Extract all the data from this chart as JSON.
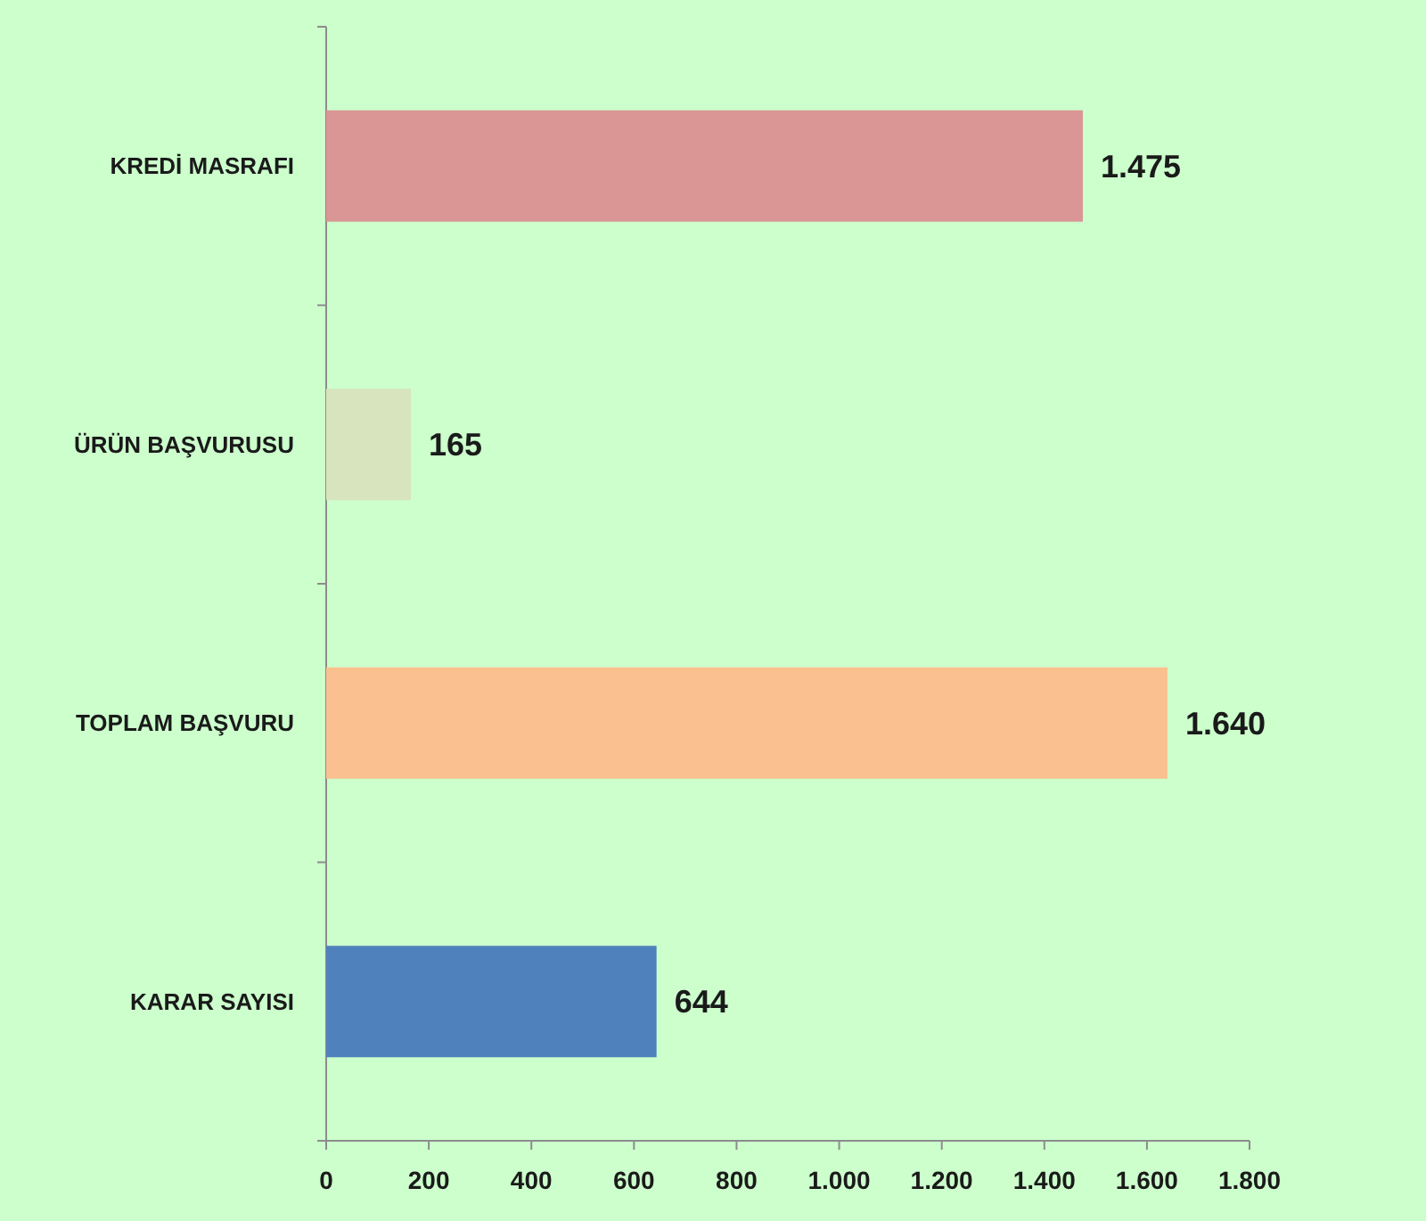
{
  "chart_data": {
    "type": "bar",
    "orientation": "horizontal",
    "categories": [
      "KREDİ MASRAFI",
      "ÜRÜN BAŞVURUSU",
      "TOPLAM BAŞVURU",
      "KARAR SAYISI"
    ],
    "values": [
      1475,
      165,
      1640,
      644
    ],
    "colors": [
      "#d99694",
      "#d7e4bd",
      "#fac090",
      "#4f81bd"
    ],
    "value_labels": [
      "1.475",
      "165",
      "1.640",
      "644"
    ],
    "xlim": [
      0,
      1800
    ],
    "xticks": [
      0,
      200,
      400,
      600,
      800,
      {
        "value": 1000,
        "label": "1.000"
      },
      {
        "value": 1200,
        "label": "1.200"
      },
      {
        "value": 1400,
        "label": "1.400"
      },
      {
        "value": 1600,
        "label": "1.600"
      },
      {
        "value": 1800,
        "label": "1.800"
      }
    ]
  }
}
